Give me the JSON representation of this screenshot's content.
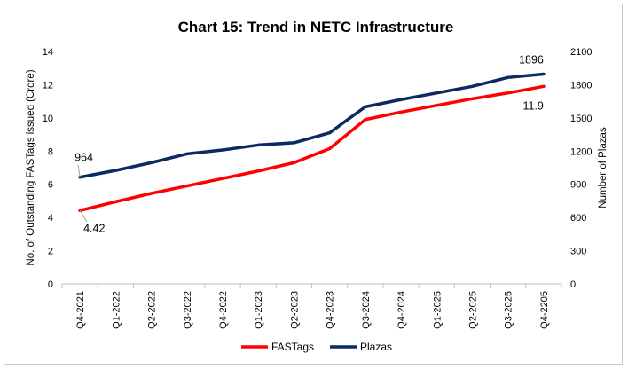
{
  "chart_data": {
    "type": "line",
    "title": "Chart 15: Trend in NETC Infrastructure",
    "ylabel_left": "No. of Outstanding  FASTags issued  (Crore)",
    "ylabel_right": "Number of Plazas",
    "x": [
      "Q4-2021",
      "Q1-2022",
      "Q2-2022",
      "Q3-2022",
      "Q4-2022",
      "Q1-2023",
      "Q2-2023",
      "Q4-2023",
      "Q3-2024",
      "Q4-2024",
      "Q1-2025",
      "Q2-2025",
      "Q3-2025",
      "Q4-2205"
    ],
    "ylim_left": [
      0,
      14
    ],
    "yticks_left": [
      "0",
      "2",
      "4",
      "6",
      "8",
      "10",
      "12",
      "14"
    ],
    "ylim_right": [
      0,
      2100
    ],
    "yticks_right": [
      "0",
      "300",
      "600",
      "900",
      "1200",
      "1500",
      "1800",
      "2100"
    ],
    "grid": false,
    "legend_position": "bottom",
    "series": [
      {
        "name": "FASTags",
        "axis": "left",
        "color": "#ff0000",
        "values": [
          4.42,
          4.95,
          5.45,
          5.9,
          6.35,
          6.8,
          7.3,
          8.15,
          9.9,
          10.35,
          10.75,
          11.15,
          11.5,
          11.9
        ]
      },
      {
        "name": "Plazas",
        "axis": "right",
        "color": "#0b2a63",
        "values": [
          964,
          1025,
          1095,
          1175,
          1210,
          1255,
          1275,
          1365,
          1600,
          1665,
          1725,
          1785,
          1865,
          1896
        ]
      }
    ],
    "data_labels": [
      {
        "series": "FASTags",
        "index": 0,
        "text": "4.42"
      },
      {
        "series": "FASTags",
        "index": 13,
        "text": "11.9"
      },
      {
        "series": "Plazas",
        "index": 0,
        "text": "964"
      },
      {
        "series": "Plazas",
        "index": 13,
        "text": "1896"
      }
    ]
  }
}
